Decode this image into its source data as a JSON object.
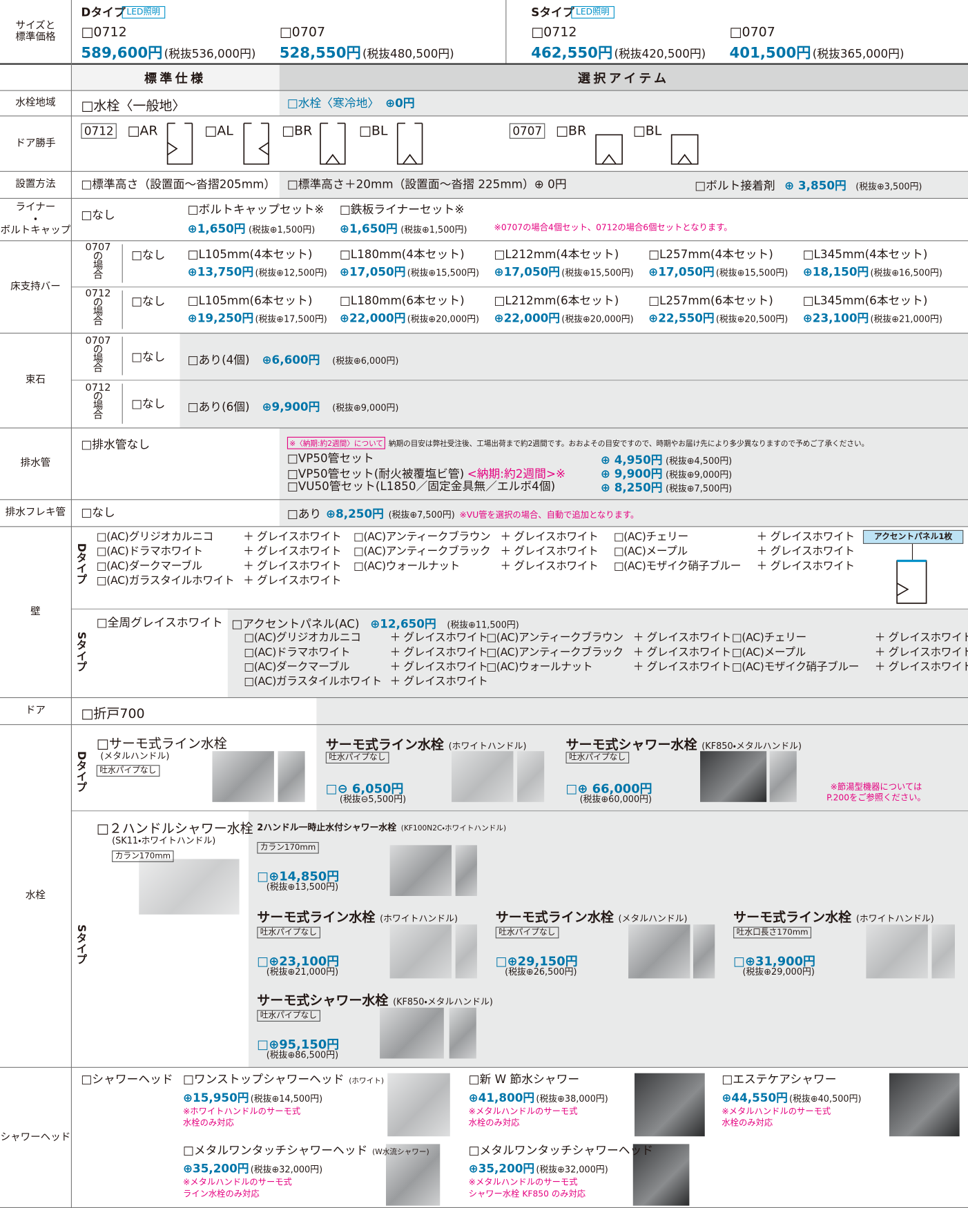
{
  "size": {
    "label": "サイズと\n標準価格",
    "d": {
      "type": "Dタイプ",
      "led": "LED照明",
      "items": [
        {
          "code": "□0712",
          "price": "589,600円",
          "tax": "(税抜536,000円)"
        },
        {
          "code": "□0707",
          "price": "528,550円",
          "tax": "(税抜480,500円)"
        }
      ]
    },
    "s": {
      "type": "Sタイプ",
      "led": "LED照明",
      "items": [
        {
          "code": "□0712",
          "price": "462,550円",
          "tax": "(税抜420,500円)"
        },
        {
          "code": "□0707",
          "price": "401,500円",
          "tax": "(税抜365,000円)"
        }
      ]
    }
  },
  "columns": {
    "standard": "標準仕様",
    "options": "選択アイテム"
  },
  "faucet_region": {
    "label": "水栓地域",
    "standard": "□水栓〈一般地〉",
    "option": "□水栓〈寒冷地〉",
    "price": "⊕0円"
  },
  "door_hand": {
    "label": "ドア勝手",
    "groups": [
      {
        "size": "0712",
        "options": [
          "□AR",
          "□AL",
          "□BR",
          "□BL"
        ]
      },
      {
        "size": "0707",
        "options": [
          "□BR",
          "□BL"
        ]
      }
    ]
  },
  "install": {
    "label": "設置方法",
    "standard": "□標準高さ（設置面〜沓摺205mm）",
    "option": "□標準高さ＋20mm（設置面〜沓摺 225mm）⊕ 0円",
    "bolt": {
      "name": "□ボルト接着剤",
      "price": "⊕ 3,850円",
      "tax": "(税抜⊕3,500円)"
    }
  },
  "liner": {
    "label": "ライナー\n・\nボルトキャップ",
    "standard": "□なし",
    "items": [
      {
        "name": "□ボルトキャップセット※",
        "price": "⊕1,650円",
        "tax": "(税抜⊕1,500円)"
      },
      {
        "name": "□鉄板ライナーセット※",
        "price": "⊕1,650円",
        "tax": "(税抜⊕1,500円)"
      }
    ],
    "note": "※0707の場合4個セット、0712の場合6個セットとなります。"
  },
  "floor_bar": {
    "label": "床支持バー",
    "groups": [
      {
        "size": "0707\nの\n場\n合",
        "none": "□なし",
        "items": [
          {
            "name": "□L105mm(4本セット)",
            "price": "⊕13,750円",
            "tax": "(税抜⊕12,500円)"
          },
          {
            "name": "□L180mm(4本セット)",
            "price": "⊕17,050円",
            "tax": "(税抜⊕15,500円)"
          },
          {
            "name": "□L212mm(4本セット)",
            "price": "⊕17,050円",
            "tax": "(税抜⊕15,500円)"
          },
          {
            "name": "□L257mm(4本セット)",
            "price": "⊕17,050円",
            "tax": "(税抜⊕15,500円)"
          },
          {
            "name": "□L345mm(4本セット)",
            "price": "⊕18,150円",
            "tax": "(税抜⊕16,500円)"
          }
        ]
      },
      {
        "size": "0712\nの\n場\n合",
        "none": "□なし",
        "items": [
          {
            "name": "□L105mm(6本セット)",
            "price": "⊕19,250円",
            "tax": "(税抜⊕17,500円)"
          },
          {
            "name": "□L180mm(6本セット)",
            "price": "⊕22,000円",
            "tax": "(税抜⊕20,000円)"
          },
          {
            "name": "□L212mm(6本セット)",
            "price": "⊕22,000円",
            "tax": "(税抜⊕20,000円)"
          },
          {
            "name": "□L257mm(6本セット)",
            "price": "⊕22,550円",
            "tax": "(税抜⊕20,500円)"
          },
          {
            "name": "□L345mm(6本セット)",
            "price": "⊕23,100円",
            "tax": "(税抜⊕21,000円)"
          }
        ]
      }
    ]
  },
  "foundation": {
    "label": "束石",
    "groups": [
      {
        "size": "0707\nの\n場\n合",
        "none": "□なし",
        "item": {
          "name": "□あり(4個)",
          "price": "⊕6,600円",
          "tax": "(税抜⊕6,000円)"
        }
      },
      {
        "size": "0712\nの\n場\n合",
        "none": "□なし",
        "item": {
          "name": "□あり(6個)",
          "price": "⊕9,900円",
          "tax": "(税抜⊕9,000円)"
        }
      }
    ]
  },
  "drain": {
    "label": "排水管",
    "standard": "□排水管なし",
    "notice": {
      "tag": "※〈納期:約2週間〉について",
      "text": "納期の目安は弊社受注後、工場出荷まで約2週間です。おおよその目安ですので、時期やお届け先により多少異なりますので予めご了承ください。"
    },
    "items": [
      {
        "name": "□VP50管セット",
        "price": "⊕ 4,950円",
        "tax": "(税抜⊕4,500円)"
      },
      {
        "name": "□VP50管セット(耐火被覆塩ビ管)",
        "lead": "<納期:約2週間>※",
        "price": "⊕ 9,900円",
        "tax": "(税抜⊕9,000円)"
      },
      {
        "name": "□VU50管セット(L1850／固定金具無／エルボ4個)",
        "price": "⊕ 8,250円",
        "tax": "(税抜⊕7,500円)"
      }
    ]
  },
  "drain_flex": {
    "label": "排水フレキ管",
    "standard": "□なし",
    "option": "□あり",
    "price": "⊕8,250円",
    "tax": "(税抜⊕7,500円)",
    "note": "※VU管を選択の場合、自動で追加となります。"
  },
  "wall": {
    "label": "壁",
    "d": {
      "type": "Dタイプ",
      "panel": "アクセントパネル1枚",
      "items": [
        {
          "name": "□(AC)グリジオカルニコ",
          "plus": "＋ グレイスホワイト"
        },
        {
          "name": "□(AC)ドラマホワイト",
          "plus": "＋ グレイスホワイト"
        },
        {
          "name": "□(AC)ダークマーブル",
          "plus": "＋ グレイスホワイト"
        },
        {
          "name": "□(AC)ガラスタイルホワイト",
          "plus": "＋ グレイスホワイト"
        },
        {
          "name": "□(AC)アンティークブラウン",
          "plus": "＋ グレイスホワイト"
        },
        {
          "name": "□(AC)アンティークブラック",
          "plus": "＋ グレイスホワイト"
        },
        {
          "name": "□(AC)ウォールナット",
          "plus": "＋ グレイスホワイト"
        },
        {
          "name": "□(AC)チェリー",
          "plus": "＋ グレイスホワイト"
        },
        {
          "name": "□(AC)メープル",
          "plus": "＋ グレイスホワイト"
        },
        {
          "name": "□(AC)モザイク硝子ブルー",
          "plus": "＋ グレイスホワイト"
        }
      ]
    },
    "s": {
      "type": "Sタイプ",
      "standard": "□全周グレイスホワイト",
      "accent": {
        "name": "□アクセントパネル(AC)",
        "price": "⊕12,650円",
        "tax": "(税抜⊕11,500円)"
      },
      "items": [
        {
          "name": "□(AC)グリジオカルニコ",
          "plus": "＋ グレイスホワイト"
        },
        {
          "name": "□(AC)ドラマホワイト",
          "plus": "＋ グレイスホワイト"
        },
        {
          "name": "□(AC)ダークマーブル",
          "plus": "＋ グレイスホワイト"
        },
        {
          "name": "□(AC)ガラスタイルホワイト",
          "plus": "＋ グレイスホワイト"
        },
        {
          "name": "□(AC)アンティークブラウン",
          "plus": "＋ グレイスホワイト"
        },
        {
          "name": "□(AC)アンティークブラック",
          "plus": "＋ グレイスホワイト"
        },
        {
          "name": "□(AC)ウォールナット",
          "plus": "＋ グレイスホワイト"
        },
        {
          "name": "□(AC)チェリー",
          "plus": "＋ グレイスホワイト"
        },
        {
          "name": "□(AC)メープル",
          "plus": "＋ グレイスホワイト"
        },
        {
          "name": "□(AC)モザイク硝子ブルー",
          "plus": "＋ グレイスホワイト"
        }
      ]
    }
  },
  "door": {
    "label": "ドア",
    "standard": "□折戸700"
  },
  "faucet": {
    "label": "水栓",
    "d": {
      "type": "Dタイプ",
      "standard": {
        "name": "□サーモ式ライン水栓",
        "sub": "(メタルハンドル)",
        "tag": "吐水パイプなし"
      },
      "items": [
        {
          "name": "サーモ式ライン水栓",
          "sub": "(ホワイトハンドル)",
          "tag": "吐水パイプなし",
          "price": "□⊖ 6,050円",
          "tax": "(税抜⊖5,500円)"
        },
        {
          "name": "サーモ式シャワー水栓",
          "sub": "(KF850・メタルハンドル)",
          "tag": "吐水パイプなし",
          "price": "□⊕ 66,000円",
          "tax": "(税抜⊕60,000円)"
        }
      ],
      "note": "※節湯型機器については\nP.200をご参照ください。"
    },
    "s": {
      "type": "Sタイプ",
      "standard": {
        "name": "□２ハンドルシャワー水栓",
        "sub": "(SK11・ホワイトハンドル)",
        "tag": "カラン170mm"
      },
      "items": [
        {
          "name": "2ハンドル一時止水付シャワー水栓",
          "sub": "(KF100N2C・ホワイトハンドル)",
          "tag": "カラン170mm",
          "price": "□⊕14,850円",
          "tax": "(税抜⊕13,500円)"
        },
        {
          "name": "サーモ式ライン水栓",
          "sub": "(ホワイトハンドル)",
          "tag": "吐水パイプなし",
          "price": "□⊕23,100円",
          "tax": "(税抜⊕21,000円)"
        },
        {
          "name": "サーモ式ライン水栓",
          "sub": "(メタルハンドル)",
          "tag": "吐水パイプなし",
          "price": "□⊕29,150円",
          "tax": "(税抜⊕26,500円)"
        },
        {
          "name": "サーモ式ライン水栓",
          "sub": "(ホワイトハンドル)",
          "tag": "吐水口長さ170mm",
          "price": "□⊕31,900円",
          "tax": "(税抜⊕29,000円)"
        },
        {
          "name": "サーモ式シャワー水栓",
          "sub": "(KF850・メタルハンドル)",
          "tag": "吐水パイプなし",
          "price": "□⊕95,150円",
          "tax": "(税抜⊕86,500円)"
        }
      ]
    }
  },
  "shower": {
    "label": "シャワーヘッド",
    "standard": "□シャワーヘッド",
    "items": [
      {
        "name": "□ワンストップシャワーヘッド",
        "sub": "(ホワイト)",
        "price": "⊕15,950円",
        "tax": "(税抜⊕14,500円)",
        "note": "※ホワイトハンドルのサーモ式\n水栓のみ対応"
      },
      {
        "name": "□新 W 節水シャワー",
        "price": "⊕41,800円",
        "tax": "(税抜⊕38,000円)",
        "note": "※メタルハンドルのサーモ式\n水栓のみ対応"
      },
      {
        "name": "□エステケアシャワー",
        "price": "⊕44,550円",
        "tax": "(税抜⊕40,500円)",
        "note": "※メタルハンドルのサーモ式\n水栓のみ対応"
      },
      {
        "name": "□メタルワンタッチシャワーヘッド",
        "sub": "(W水流シャワー)",
        "price": "⊕35,200円",
        "tax": "(税抜⊕32,000円)",
        "note": "※メタルハンドルのサーモ式\nライン水栓のみ対応"
      },
      {
        "name": "□メタルワンタッチシャワーヘッド",
        "price": "⊕35,200円",
        "tax": "(税抜⊕32,000円)",
        "note": "※メタルハンドルのサーモ式\nシャワー水栓 KF850 のみ対応"
      }
    ]
  }
}
